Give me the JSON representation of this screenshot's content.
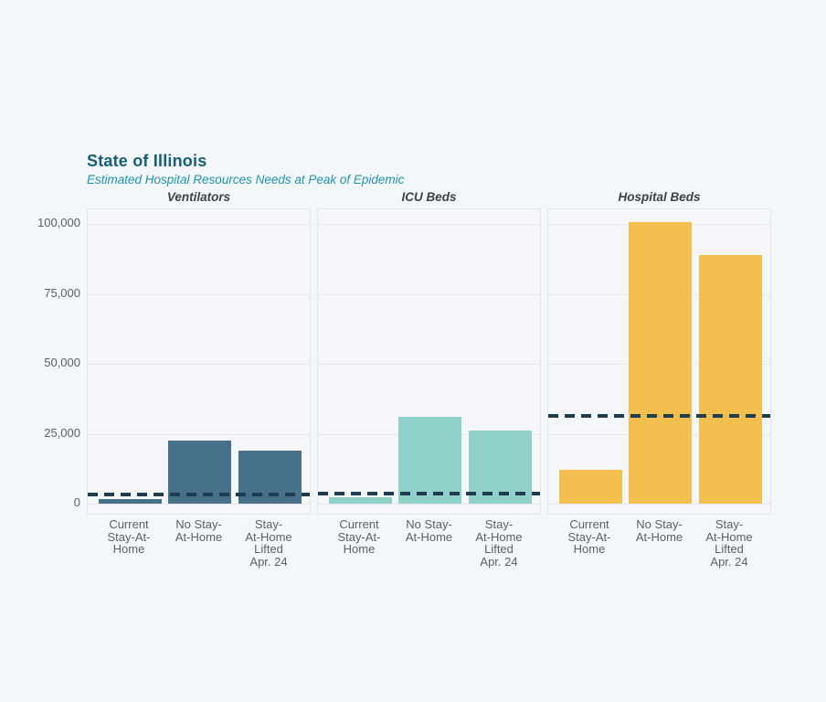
{
  "page": {
    "title": "State of Illinois",
    "subtitle": "Estimated Hospital Resources Needs at Peak of Epidemic"
  },
  "colors": {
    "page_background": "#f3f7f9",
    "panel_background": "#f4f6f9",
    "panel_border": "#e4e6ea",
    "gridline": "#e4e7ec",
    "title_text": "#155e78",
    "subtitle_text": "#1f93ad",
    "panel_title_text": "#3e4246",
    "axis_text": "#5b6066",
    "ventilators_bar": "#47708a",
    "icu_bar": "#8fd1c9",
    "hospital_bar": "#f3bf4f",
    "capacity_line": "#1f3c50"
  },
  "chart_data": {
    "type": "bar",
    "title": "State of Illinois",
    "subtitle": "Estimated Hospital Resources Needs at Peak of Epidemic",
    "categories": [
      "Current Stay-At-Home",
      "No Stay-At-Home",
      "Stay-At-Home Lifted Apr. 24"
    ],
    "category_tick_lines": [
      [
        "Current",
        "Stay-At-",
        "Home"
      ],
      [
        "No Stay-",
        "At-Home"
      ],
      [
        "Stay-",
        "At-Home",
        "Lifted",
        "Apr. 24"
      ]
    ],
    "y_ticks": [
      0,
      25000,
      50000,
      75000,
      100000
    ],
    "y_tick_labels": [
      "0",
      "25,000",
      "50,000",
      "75,000",
      "100,000"
    ],
    "ylim": [
      0,
      105200
    ],
    "grid": true,
    "legend_position": "none",
    "capacity_line_style": "dashed",
    "panels": [
      {
        "title": "Ventilators",
        "bar_color": "#47708a",
        "values": [
          1600,
          22500,
          19000
        ],
        "capacity_line": 3300
      },
      {
        "title": "ICU Beds",
        "bar_color": "#8fd1c9",
        "values": [
          2300,
          31000,
          26100
        ],
        "capacity_line": 3600
      },
      {
        "title": "Hospital Beds",
        "bar_color": "#f3bf4f",
        "values": [
          12100,
          100700,
          88900
        ],
        "capacity_line": 31400
      }
    ]
  }
}
